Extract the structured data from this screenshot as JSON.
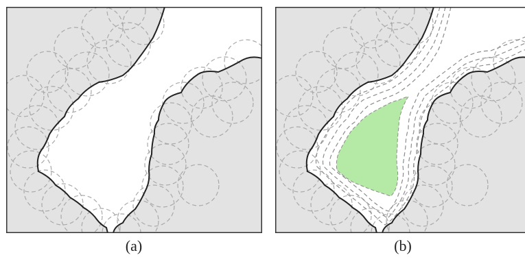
{
  "figure": {
    "panels": [
      {
        "id": "a",
        "caption": "(a)",
        "shows_free_region": false,
        "offset_band_count": 0
      },
      {
        "id": "b",
        "caption": "(b)",
        "shows_free_region": true,
        "offset_band_count": 3
      }
    ],
    "colors": {
      "obstacle_fill": "#e3e3e3",
      "circle_stroke": "#a9a9a9",
      "boundary_stroke": "#222222",
      "frame_stroke": "#333333",
      "offset_stroke": "#8c8c8c",
      "free_region_fill": "#b5eaa6",
      "background": "#ffffff"
    }
  }
}
